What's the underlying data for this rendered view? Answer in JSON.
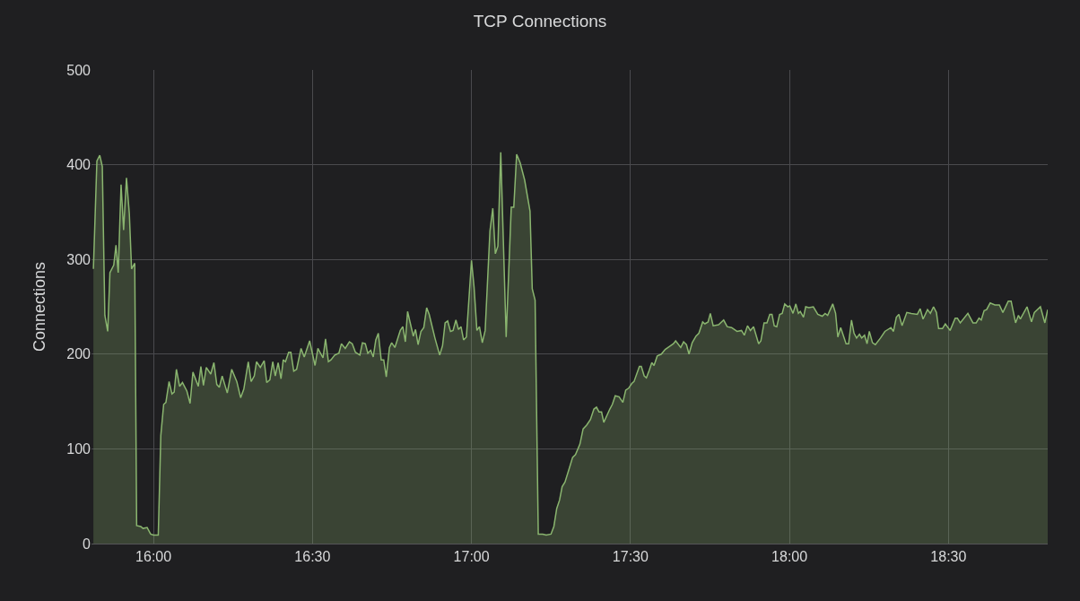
{
  "chart_data": {
    "type": "area",
    "title": "TCP Connections",
    "ylabel": "Connections",
    "x": [
      15.811,
      15.822,
      15.831,
      15.839,
      15.847,
      15.856,
      15.863,
      15.875,
      15.882,
      15.889,
      15.898,
      15.906,
      15.915,
      15.924,
      15.931,
      15.941,
      15.947,
      15.96,
      15.967,
      15.98,
      15.991,
      16.0,
      16.015,
      16.023,
      16.032,
      16.039,
      16.049,
      16.058,
      16.065,
      16.072,
      16.082,
      16.091,
      16.105,
      16.115,
      16.124,
      16.141,
      16.149,
      16.157,
      16.166,
      16.18,
      16.19,
      16.199,
      16.207,
      16.216,
      16.232,
      16.246,
      16.262,
      16.274,
      16.284,
      16.298,
      16.307,
      16.317,
      16.324,
      16.336,
      16.348,
      16.356,
      16.366,
      16.375,
      16.383,
      16.392,
      16.401,
      16.408,
      16.415,
      16.425,
      16.432,
      16.441,
      16.45,
      16.464,
      16.474,
      16.491,
      16.508,
      16.517,
      16.533,
      16.541,
      16.55,
      16.558,
      16.57,
      16.583,
      16.591,
      16.603,
      16.616,
      16.625,
      16.635,
      16.649,
      16.657,
      16.666,
      16.674,
      16.683,
      16.691,
      16.699,
      16.707,
      16.716,
      16.724,
      16.732,
      16.742,
      16.749,
      16.759,
      16.776,
      16.784,
      16.792,
      16.799,
      16.817,
      16.824,
      16.832,
      16.841,
      16.85,
      16.859,
      16.867,
      16.885,
      16.9,
      16.909,
      16.917,
      16.925,
      16.934,
      16.942,
      16.951,
      16.959,
      16.967,
      16.975,
      16.984,
      17.0,
      17.008,
      17.017,
      17.025,
      17.034,
      17.043,
      17.058,
      17.067,
      17.075,
      17.083,
      17.092,
      17.109,
      17.125,
      17.133,
      17.142,
      17.153,
      17.167,
      17.184,
      17.191,
      17.2,
      17.21,
      17.224,
      17.235,
      17.25,
      17.259,
      17.268,
      17.277,
      17.285,
      17.294,
      17.308,
      17.318,
      17.327,
      17.341,
      17.351,
      17.362,
      17.374,
      17.385,
      17.393,
      17.401,
      17.409,
      17.416,
      17.435,
      17.443,
      17.452,
      17.464,
      17.476,
      17.485,
      17.494,
      17.504,
      17.511,
      17.528,
      17.534,
      17.543,
      17.55,
      17.559,
      17.567,
      17.574,
      17.584,
      17.597,
      17.609,
      17.622,
      17.635,
      17.642,
      17.658,
      17.667,
      17.676,
      17.684,
      17.694,
      17.706,
      17.715,
      17.727,
      17.734,
      17.744,
      17.751,
      17.76,
      17.777,
      17.793,
      17.804,
      17.818,
      17.835,
      17.849,
      17.858,
      17.868,
      17.877,
      17.887,
      17.903,
      17.91,
      17.92,
      17.929,
      17.938,
      17.945,
      17.952,
      17.96,
      17.969,
      17.977,
      17.985,
      17.995,
      18.001,
      18.011,
      18.02,
      18.028,
      18.034,
      18.044,
      18.051,
      18.061,
      18.075,
      18.089,
      18.103,
      18.112,
      18.12,
      18.136,
      18.145,
      18.152,
      18.161,
      18.178,
      18.186,
      18.195,
      18.203,
      18.211,
      18.22,
      18.227,
      18.236,
      18.244,
      18.251,
      18.261,
      18.27,
      18.286,
      18.3,
      18.319,
      18.327,
      18.336,
      18.344,
      18.354,
      18.369,
      18.383,
      18.402,
      18.411,
      18.42,
      18.434,
      18.443,
      18.453,
      18.462,
      18.469,
      18.481,
      18.49,
      18.505,
      18.521,
      18.528,
      18.537,
      18.561,
      18.577,
      18.587,
      18.596,
      18.603,
      18.612,
      18.62,
      18.631,
      18.646,
      18.66,
      18.671,
      18.688,
      18.697,
      18.711,
      18.72,
      18.726,
      18.747,
      18.761,
      18.77,
      18.789,
      18.803,
      18.812
    ],
    "series": [
      {
        "color": "#8ab56f",
        "values": [
          290,
          404,
          410,
          398,
          241,
          224,
          286,
          294,
          315,
          286,
          379,
          331,
          386,
          348,
          290,
          296,
          19,
          18,
          16,
          17,
          10,
          9,
          9,
          114,
          147,
          149,
          171,
          158,
          160,
          184,
          166,
          170,
          161,
          148,
          181,
          166,
          187,
          167,
          186,
          179,
          191,
          168,
          165,
          177,
          159,
          184,
          171,
          154,
          163,
          192,
          171,
          177,
          192,
          186,
          193,
          170,
          173,
          192,
          177,
          191,
          174,
          194,
          192,
          202,
          202,
          182,
          184,
          206,
          197,
          214,
          188,
          206,
          196,
          216,
          192,
          194,
          199,
          201,
          211,
          206,
          213,
          211,
          202,
          199,
          212,
          211,
          201,
          204,
          197,
          215,
          222,
          194,
          194,
          176,
          207,
          212,
          207,
          225,
          229,
          213,
          245,
          219,
          226,
          210,
          224,
          228,
          249,
          242,
          217,
          199,
          209,
          233,
          235,
          224,
          225,
          236,
          226,
          229,
          215,
          218,
          299,
          271,
          225,
          229,
          212,
          225,
          330,
          354,
          306,
          314,
          413,
          218,
          355,
          355,
          411,
          402,
          384,
          351,
          269,
          257,
          10,
          10,
          9,
          10,
          18,
          37,
          46,
          60,
          65,
          80,
          91,
          94,
          105,
          121,
          125,
          131,
          142,
          144,
          139,
          139,
          128,
          142,
          147,
          156,
          155,
          149,
          162,
          164,
          169,
          171,
          187,
          187,
          177,
          175,
          183,
          191,
          188,
          198,
          200,
          205,
          208,
          211,
          214,
          207,
          213,
          210,
          200,
          212,
          219,
          222,
          234,
          232,
          234,
          243,
          230,
          231,
          236,
          229,
          228,
          224,
          225,
          220,
          230,
          225,
          229,
          211,
          214,
          233,
          233,
          242,
          242,
          230,
          229,
          242,
          243,
          253,
          250,
          251,
          243,
          253,
          243,
          245,
          239,
          250,
          249,
          250,
          242,
          240,
          243,
          241,
          253,
          243,
          218,
          228,
          211,
          211,
          236,
          222,
          217,
          221,
          217,
          220,
          211,
          224,
          212,
          210,
          217,
          224,
          228,
          224,
          239,
          242,
          230,
          244,
          243,
          242,
          248,
          237,
          247,
          243,
          250,
          244,
          227,
          227,
          232,
          225,
          238,
          238,
          233,
          243,
          233,
          233,
          238,
          236,
          246,
          247,
          254,
          252,
          252,
          244,
          256,
          256,
          233,
          241,
          237,
          250,
          234,
          244,
          250,
          233,
          247
        ]
      }
    ],
    "xlim": [
      15.805,
      18.812
    ],
    "xticks": [
      {
        "value": 16,
        "label": "16:00"
      },
      {
        "value": 16.5,
        "label": "16:30"
      },
      {
        "value": 17,
        "label": "17:00"
      },
      {
        "value": 17.5,
        "label": "17:30"
      },
      {
        "value": 18,
        "label": "18:00"
      },
      {
        "value": 18.5,
        "label": "18:30"
      }
    ],
    "ylim": [
      0,
      500
    ],
    "yticks": [
      0,
      100,
      200,
      300,
      400,
      500
    ],
    "grid": true
  }
}
